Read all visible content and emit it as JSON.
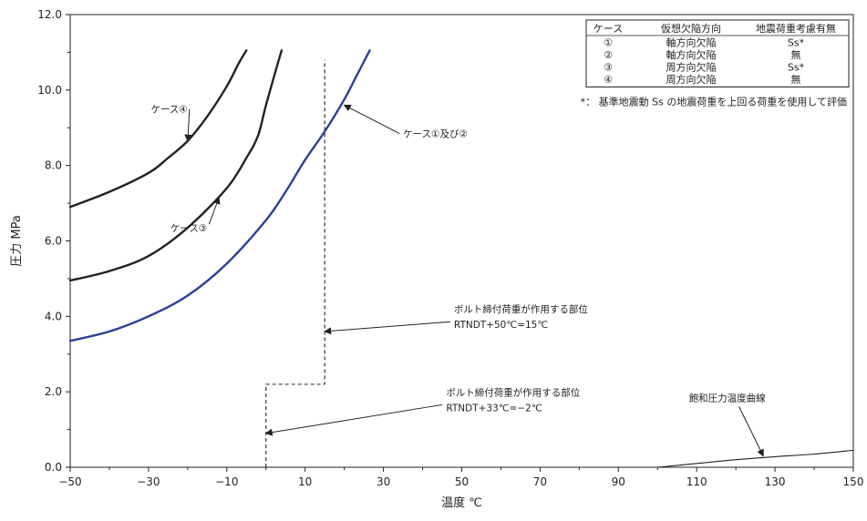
{
  "chart_data": {
    "type": "line",
    "xlabel": "温度 ℃",
    "ylabel": "圧力 MPa",
    "xlim": [
      -50,
      150
    ],
    "ylim": [
      0,
      12
    ],
    "x_ticks": [
      "−50",
      "−30",
      "−10",
      "10",
      "30",
      "50",
      "70",
      "90",
      "110",
      "130",
      "150"
    ],
    "y_ticks": [
      "0.0",
      "2.0",
      "4.0",
      "6.0",
      "8.0",
      "10.0",
      "12.0"
    ],
    "grid": false,
    "series": [
      {
        "name": "ケース①及び②",
        "color": "#2a3f9a",
        "points": [
          [
            -50,
            3.35
          ],
          [
            -40,
            3.6
          ],
          [
            -30,
            4.0
          ],
          [
            -20,
            4.55
          ],
          [
            -10,
            5.4
          ],
          [
            0,
            6.55
          ],
          [
            5,
            7.3
          ],
          [
            10,
            8.15
          ],
          [
            15,
            8.9
          ],
          [
            20,
            9.75
          ],
          [
            23,
            10.35
          ],
          [
            26.5,
            11.05
          ]
        ]
      },
      {
        "name": "ケース③",
        "color": "#222222",
        "points": [
          [
            -50,
            4.95
          ],
          [
            -40,
            5.2
          ],
          [
            -30,
            5.6
          ],
          [
            -20,
            6.35
          ],
          [
            -10,
            7.4
          ],
          [
            -5,
            8.2
          ],
          [
            -2,
            8.8
          ],
          [
            0,
            9.6
          ],
          [
            3,
            10.7
          ],
          [
            4,
            11.05
          ]
        ]
      },
      {
        "name": "ケース④",
        "color": "#222222",
        "points": [
          [
            -50,
            6.9
          ],
          [
            -40,
            7.3
          ],
          [
            -30,
            7.8
          ],
          [
            -25,
            8.2
          ],
          [
            -20,
            8.65
          ],
          [
            -15,
            9.3
          ],
          [
            -10,
            10.1
          ],
          [
            -7,
            10.7
          ],
          [
            -5,
            11.05
          ]
        ]
      },
      {
        "name": "飽和圧力温度曲線",
        "color": "#222222",
        "points": [
          [
            100,
            0.0
          ],
          [
            110,
            0.1
          ],
          [
            120,
            0.2
          ],
          [
            130,
            0.28
          ],
          [
            140,
            0.35
          ],
          [
            150,
            0.45
          ]
        ]
      }
    ],
    "step_line": {
      "style": "dashed",
      "points": [
        [
          0,
          0.0
        ],
        [
          0,
          2.2
        ],
        [
          15,
          2.2
        ],
        [
          15,
          10.8
        ]
      ]
    },
    "annotations": [
      {
        "id": "ann-case4",
        "text": "ケース④",
        "at": [
          -20,
          9.4
        ],
        "arrow_to": [
          -20,
          8.65
        ]
      },
      {
        "id": "ann-case3",
        "text": "ケース③",
        "at": [
          -15,
          6.25
        ],
        "arrow_to": [
          -12,
          7.15
        ]
      },
      {
        "id": "ann-case12",
        "text": "ケース①及び②",
        "at": [
          35,
          8.75
        ],
        "arrow_to": [
          20,
          9.6
        ]
      },
      {
        "id": "ann-bolt15",
        "text": "ボルト締付荷重が作用する部位",
        "sub_text": "RTNDT+50℃=15℃",
        "at": [
          48,
          4.1
        ],
        "arrow_to": [
          15,
          3.6
        ]
      },
      {
        "id": "ann-bolt-2",
        "text": "ボルト締付荷重が作用する部位",
        "sub_text": "RTNDT+33℃=−2℃",
        "at": [
          46,
          1.9
        ],
        "arrow_to": [
          0,
          0.9
        ]
      },
      {
        "id": "ann-sat",
        "text": "飽和圧力温度曲線",
        "at": [
          108,
          1.75
        ],
        "arrow_to": [
          127,
          0.3
        ]
      }
    ],
    "legend_table": {
      "placement": "top-right",
      "headers": [
        "ケース",
        "仮想欠陥方向",
        "地震荷重考慮有無"
      ],
      "rows": [
        [
          "①",
          "軸方向欠陥",
          "Ss*"
        ],
        [
          "②",
          "軸方向欠陥",
          "無"
        ],
        [
          "③",
          "周方向欠陥",
          "Ss*"
        ],
        [
          "④",
          "周方向欠陥",
          "無"
        ]
      ]
    },
    "footnote": "*： 基準地震動 Ss の地震荷重を上回る荷重を使用して評価",
    "footnote_color": "#e02020",
    "asterisk_color": "#e02020"
  }
}
